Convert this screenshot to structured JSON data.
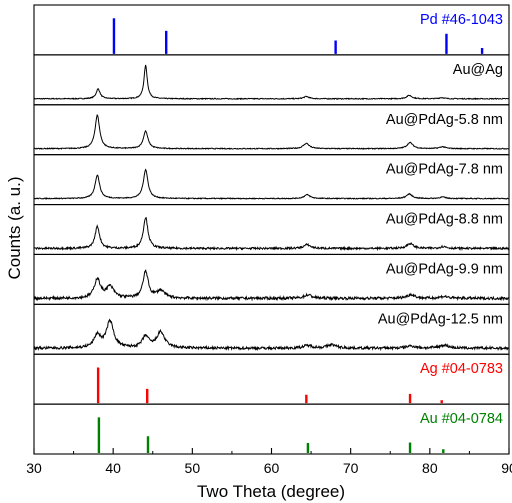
{
  "chart_data": {
    "type": "line",
    "title": "",
    "xlabel": "Two Theta (degree)",
    "ylabel": "Counts (a. u.)",
    "xlim": [
      30,
      90
    ],
    "xticks": [
      "30",
      "40",
      "50",
      "60",
      "70",
      "80",
      "90"
    ],
    "panels": [
      {
        "label": "Pd #46-1043",
        "color": "#0000ff",
        "kind": "reference",
        "peaks": [
          {
            "x": 40.1,
            "h": 0.85
          },
          {
            "x": 46.7,
            "h": 0.55
          },
          {
            "x": 68.1,
            "h": 0.32
          },
          {
            "x": 82.1,
            "h": 0.48
          },
          {
            "x": 86.6,
            "h": 0.14
          }
        ]
      },
      {
        "label": "Au@Ag",
        "color": "#000000",
        "kind": "pattern",
        "noise": 0.012,
        "peaks": [
          {
            "x": 38.1,
            "h": 0.26,
            "w": 0.3
          },
          {
            "x": 44.1,
            "h": 0.88,
            "w": 0.25
          },
          {
            "x": 64.4,
            "h": 0.06,
            "w": 0.4
          },
          {
            "x": 77.4,
            "h": 0.09,
            "w": 0.4
          },
          {
            "x": 81.5,
            "h": 0.03,
            "w": 0.4
          }
        ]
      },
      {
        "label": "Au@PdAg-5.8 nm",
        "color": "#000000",
        "kind": "pattern",
        "noise": 0.012,
        "peaks": [
          {
            "x": 38.0,
            "h": 0.88,
            "w": 0.35
          },
          {
            "x": 44.1,
            "h": 0.46,
            "w": 0.35
          },
          {
            "x": 64.4,
            "h": 0.14,
            "w": 0.45
          },
          {
            "x": 77.5,
            "h": 0.16,
            "w": 0.45
          },
          {
            "x": 81.6,
            "h": 0.05,
            "w": 0.45
          }
        ]
      },
      {
        "label": "Au@PdAg-7.8 nm",
        "color": "#000000",
        "kind": "pattern",
        "noise": 0.012,
        "peaks": [
          {
            "x": 38.0,
            "h": 0.62,
            "w": 0.35
          },
          {
            "x": 44.1,
            "h": 0.76,
            "w": 0.35
          },
          {
            "x": 64.5,
            "h": 0.1,
            "w": 0.45
          },
          {
            "x": 77.4,
            "h": 0.12,
            "w": 0.45
          },
          {
            "x": 81.6,
            "h": 0.04,
            "w": 0.45
          }
        ]
      },
      {
        "label": "Au@PdAg-8.8 nm",
        "color": "#000000",
        "kind": "pattern",
        "noise": 0.025,
        "peaks": [
          {
            "x": 38.0,
            "h": 0.58,
            "w": 0.35
          },
          {
            "x": 44.1,
            "h": 0.82,
            "w": 0.35
          },
          {
            "x": 64.5,
            "h": 0.1,
            "w": 0.5
          },
          {
            "x": 77.5,
            "h": 0.13,
            "w": 0.5
          },
          {
            "x": 81.7,
            "h": 0.05,
            "w": 0.5
          }
        ]
      },
      {
        "label": "Au@PdAg-9.9 nm",
        "color": "#000000",
        "kind": "pattern",
        "noise": 0.035,
        "peaks": [
          {
            "x": 38.0,
            "h": 0.5,
            "w": 0.45
          },
          {
            "x": 39.6,
            "h": 0.3,
            "w": 0.6
          },
          {
            "x": 44.1,
            "h": 0.7,
            "w": 0.4
          },
          {
            "x": 46.0,
            "h": 0.2,
            "w": 0.6
          },
          {
            "x": 64.6,
            "h": 0.09,
            "w": 0.6
          },
          {
            "x": 77.6,
            "h": 0.1,
            "w": 0.6
          },
          {
            "x": 81.8,
            "h": 0.05,
            "w": 0.6
          }
        ]
      },
      {
        "label": "Au@PdAg-12.5 nm",
        "color": "#000000",
        "kind": "pattern",
        "noise": 0.035,
        "peaks": [
          {
            "x": 38.0,
            "h": 0.33,
            "w": 0.5
          },
          {
            "x": 39.6,
            "h": 0.7,
            "w": 0.55
          },
          {
            "x": 44.1,
            "h": 0.3,
            "w": 0.5
          },
          {
            "x": 46.0,
            "h": 0.42,
            "w": 0.6
          },
          {
            "x": 64.6,
            "h": 0.07,
            "w": 0.7
          },
          {
            "x": 67.6,
            "h": 0.09,
            "w": 0.7
          },
          {
            "x": 77.6,
            "h": 0.06,
            "w": 0.7
          },
          {
            "x": 81.8,
            "h": 0.08,
            "w": 0.7
          }
        ]
      },
      {
        "label": "Ag #04-0783",
        "color": "#ff0000",
        "kind": "reference",
        "peaks": [
          {
            "x": 38.1,
            "h": 0.85
          },
          {
            "x": 44.3,
            "h": 0.34
          },
          {
            "x": 64.4,
            "h": 0.2
          },
          {
            "x": 77.5,
            "h": 0.22
          },
          {
            "x": 81.5,
            "h": 0.07
          }
        ]
      },
      {
        "label": "Au #04-0784",
        "color": "#008000",
        "kind": "reference",
        "peaks": [
          {
            "x": 38.2,
            "h": 0.85
          },
          {
            "x": 44.4,
            "h": 0.4
          },
          {
            "x": 64.6,
            "h": 0.24
          },
          {
            "x": 77.5,
            "h": 0.25
          },
          {
            "x": 81.7,
            "h": 0.09
          }
        ]
      }
    ]
  }
}
